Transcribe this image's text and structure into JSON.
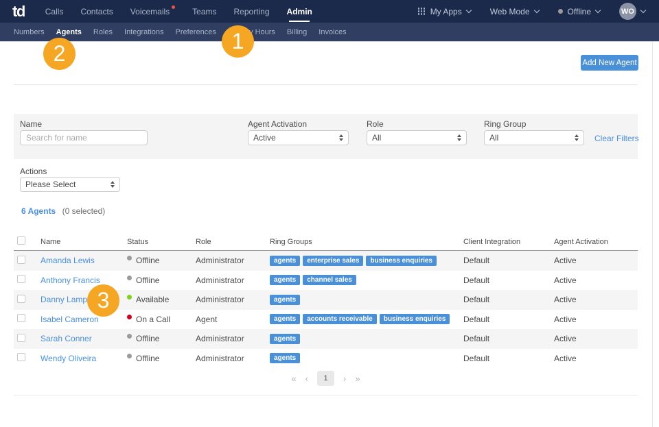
{
  "topnav": {
    "logo": "td",
    "items": [
      {
        "label": "Calls"
      },
      {
        "label": "Contacts"
      },
      {
        "label": "Voicemails",
        "badge": true
      },
      {
        "label": "Teams"
      },
      {
        "label": "Reporting"
      },
      {
        "label": "Admin",
        "active": true
      }
    ],
    "my_apps_label": "My Apps",
    "web_mode_label": "Web Mode",
    "presence_label": "Offline",
    "avatar_initials": "WO"
  },
  "subnav": {
    "items": [
      {
        "label": "Numbers"
      },
      {
        "label": "Agents",
        "active": true
      },
      {
        "label": "Roles"
      },
      {
        "label": "Integrations"
      },
      {
        "label": "Preferences"
      },
      {
        "label": "Holiday Hours"
      },
      {
        "label": "Billing"
      },
      {
        "label": "Invoices"
      }
    ]
  },
  "toolbar": {
    "add_agent_label": "Add New Agent"
  },
  "filters": {
    "name_label": "Name",
    "name_placeholder": "Search for name",
    "activation_label": "Agent Activation",
    "activation_value": "Active",
    "role_label": "Role",
    "role_value": "All",
    "ring_group_label": "Ring Group",
    "ring_group_value": "All",
    "clear_filters_label": "Clear Filters"
  },
  "actions": {
    "label": "Actions",
    "value": "Please Select"
  },
  "summary": {
    "count": "6 Agents",
    "selected": "(0 selected)"
  },
  "table": {
    "headers": [
      "Name",
      "Status",
      "Role",
      "Ring Groups",
      "Client Integration",
      "Agent Activation"
    ],
    "rows": [
      {
        "name": "Amanda Lewis",
        "status": "Offline",
        "status_kind": "offline",
        "role": "Administrator",
        "ring_groups": [
          "agents",
          "enterprise sales",
          "business enquiries"
        ],
        "client_integration": "Default",
        "agent_activation": "Active"
      },
      {
        "name": "Anthony Francis",
        "status": "Offline",
        "status_kind": "offline",
        "role": "Administrator",
        "ring_groups": [
          "agents",
          "channel sales"
        ],
        "client_integration": "Default",
        "agent_activation": "Active"
      },
      {
        "name": "Danny Lampard",
        "status": "Available",
        "status_kind": "available",
        "role": "Administrator",
        "ring_groups": [
          "agents"
        ],
        "client_integration": "Default",
        "agent_activation": "Active"
      },
      {
        "name": "Isabel Cameron",
        "status": "On a Call",
        "status_kind": "oncall",
        "role": "Agent",
        "ring_groups": [
          "agents",
          "accounts receivable",
          "business enquiries"
        ],
        "client_integration": "Default",
        "agent_activation": "Active"
      },
      {
        "name": "Sarah Conner",
        "status": "Offline",
        "status_kind": "offline",
        "role": "Administrator",
        "ring_groups": [
          "agents"
        ],
        "client_integration": "Default",
        "agent_activation": "Active"
      },
      {
        "name": "Wendy Oliveira",
        "status": "Offline",
        "status_kind": "offline",
        "role": "Administrator",
        "ring_groups": [
          "agents"
        ],
        "client_integration": "Default",
        "agent_activation": "Active"
      }
    ]
  },
  "pagination": {
    "first": "«",
    "prev": "‹",
    "page": "1",
    "next": "›",
    "last": "»"
  },
  "annotations": [
    {
      "number": "1"
    },
    {
      "number": "2"
    },
    {
      "number": "3"
    }
  ],
  "colors": {
    "topnav_bg": "#1b2a4a",
    "subnav_bg": "#2f3e61",
    "accent_blue": "#4a90d9",
    "link_blue": "#4a90e2",
    "annotation_orange": "#f5a623",
    "status_offline": "#9b9b9b",
    "status_available": "#7ed321",
    "status_oncall": "#d0021b",
    "notification_red": "#e8554d"
  }
}
